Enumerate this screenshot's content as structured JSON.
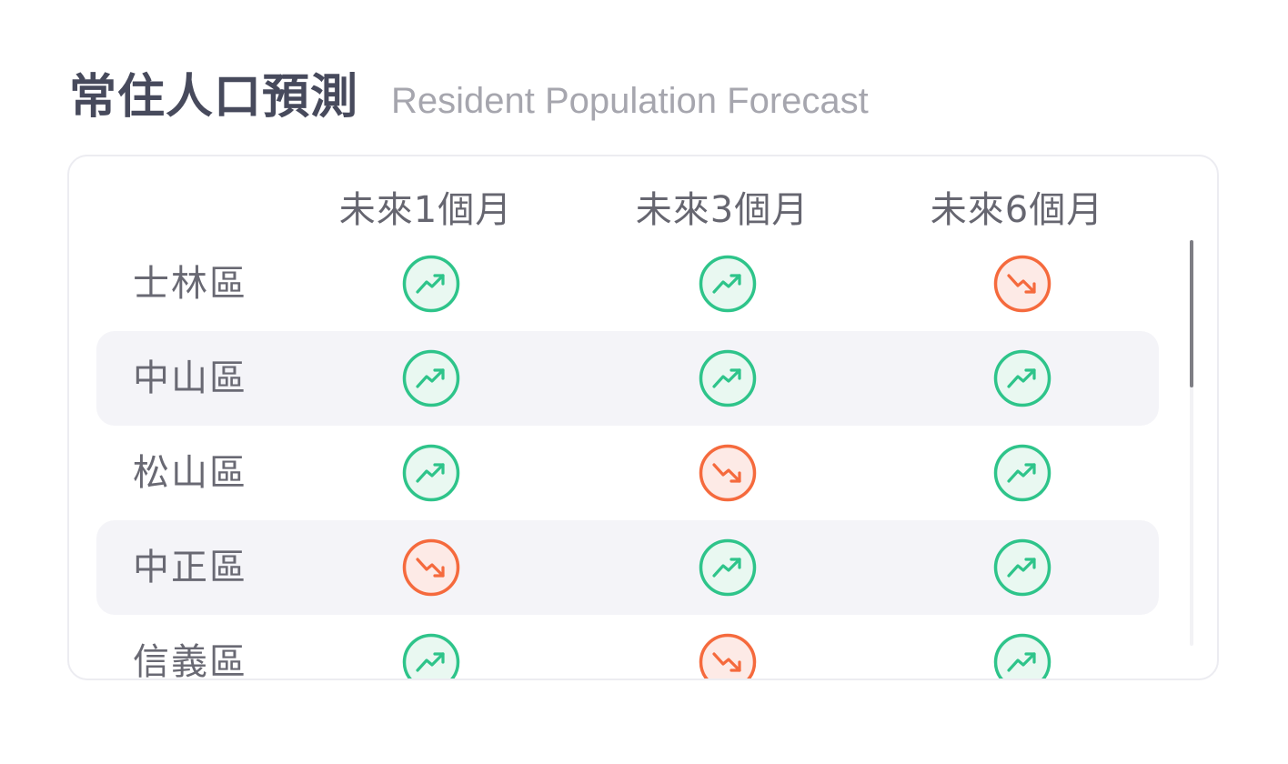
{
  "title": {
    "zh": "常住人口預測",
    "en": "Resident Population Forecast"
  },
  "columns": [
    "未來1個月",
    "未來3個月",
    "未來6個月"
  ],
  "rows": [
    {
      "district": "士林區",
      "trends": [
        "up",
        "up",
        "down"
      ]
    },
    {
      "district": "中山區",
      "trends": [
        "up",
        "up",
        "up"
      ]
    },
    {
      "district": "松山區",
      "trends": [
        "up",
        "down",
        "up"
      ]
    },
    {
      "district": "中正區",
      "trends": [
        "down",
        "up",
        "up"
      ]
    },
    {
      "district": "信義區",
      "trends": [
        "up",
        "down",
        "up"
      ]
    }
  ],
  "icons": {
    "up": "trending-up-icon",
    "down": "trending-down-icon"
  },
  "colors": {
    "up": "#2ec48a",
    "up_fill": "#e9f8f1",
    "down": "#f56a3d",
    "down_fill": "#fdeae6",
    "row_alt": "#f4f4f8",
    "title": "#474a5c",
    "subtitle": "#a6a6ae"
  }
}
